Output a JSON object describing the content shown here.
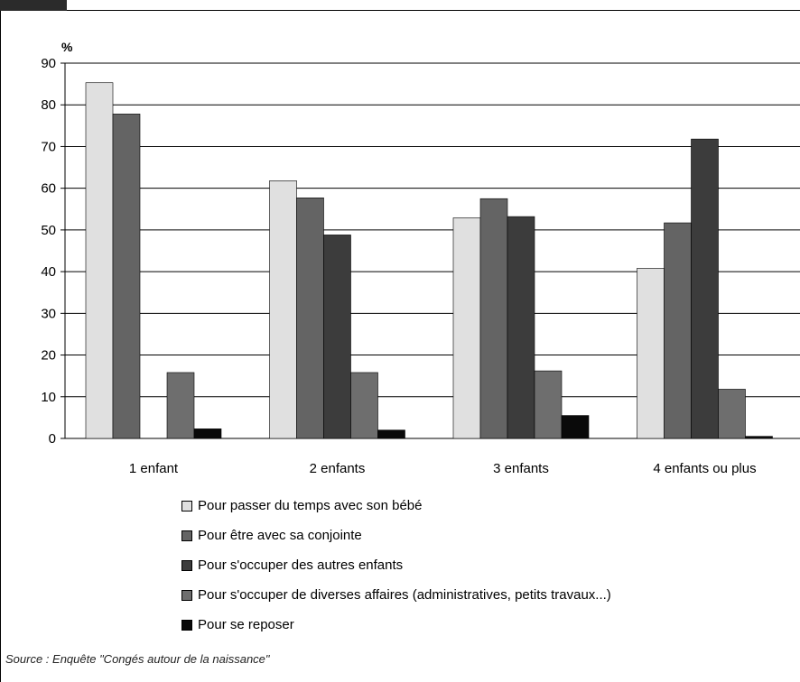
{
  "chart_data": {
    "type": "bar",
    "ylabel": "%",
    "ylim": [
      0,
      90
    ],
    "yticks": [
      0,
      10,
      20,
      30,
      40,
      50,
      60,
      70,
      80,
      90
    ],
    "grid": true,
    "legend_position": "bottom",
    "categories": [
      "1 enfant",
      "2 enfants",
      "3  enfants",
      "4 enfants ou plus"
    ],
    "series": [
      {
        "name": "Pour passer du temps avec son bébé",
        "color": "#e0e0e0",
        "values": [
          85.3,
          61.8,
          52.9,
          40.8
        ]
      },
      {
        "name": "Pour être avec sa conjointe",
        "color": "#646464",
        "values": [
          77.8,
          57.7,
          57.5,
          51.7
        ]
      },
      {
        "name": "Pour s'occuper des autres enfants",
        "color": "#3c3c3c",
        "values": [
          null,
          48.8,
          53.2,
          71.8
        ]
      },
      {
        "name": "Pour s'occuper de diverses affaires (administratives, petits travaux...)",
        "color": "#6e6e6e",
        "values": [
          15.8,
          15.8,
          16.2,
          11.8
        ]
      },
      {
        "name": "Pour se reposer",
        "color": "#0a0a0a",
        "values": [
          2.3,
          2.0,
          5.5,
          0.5
        ]
      }
    ]
  },
  "source": "Source : Enquête \"Congés autour de la naissance\""
}
